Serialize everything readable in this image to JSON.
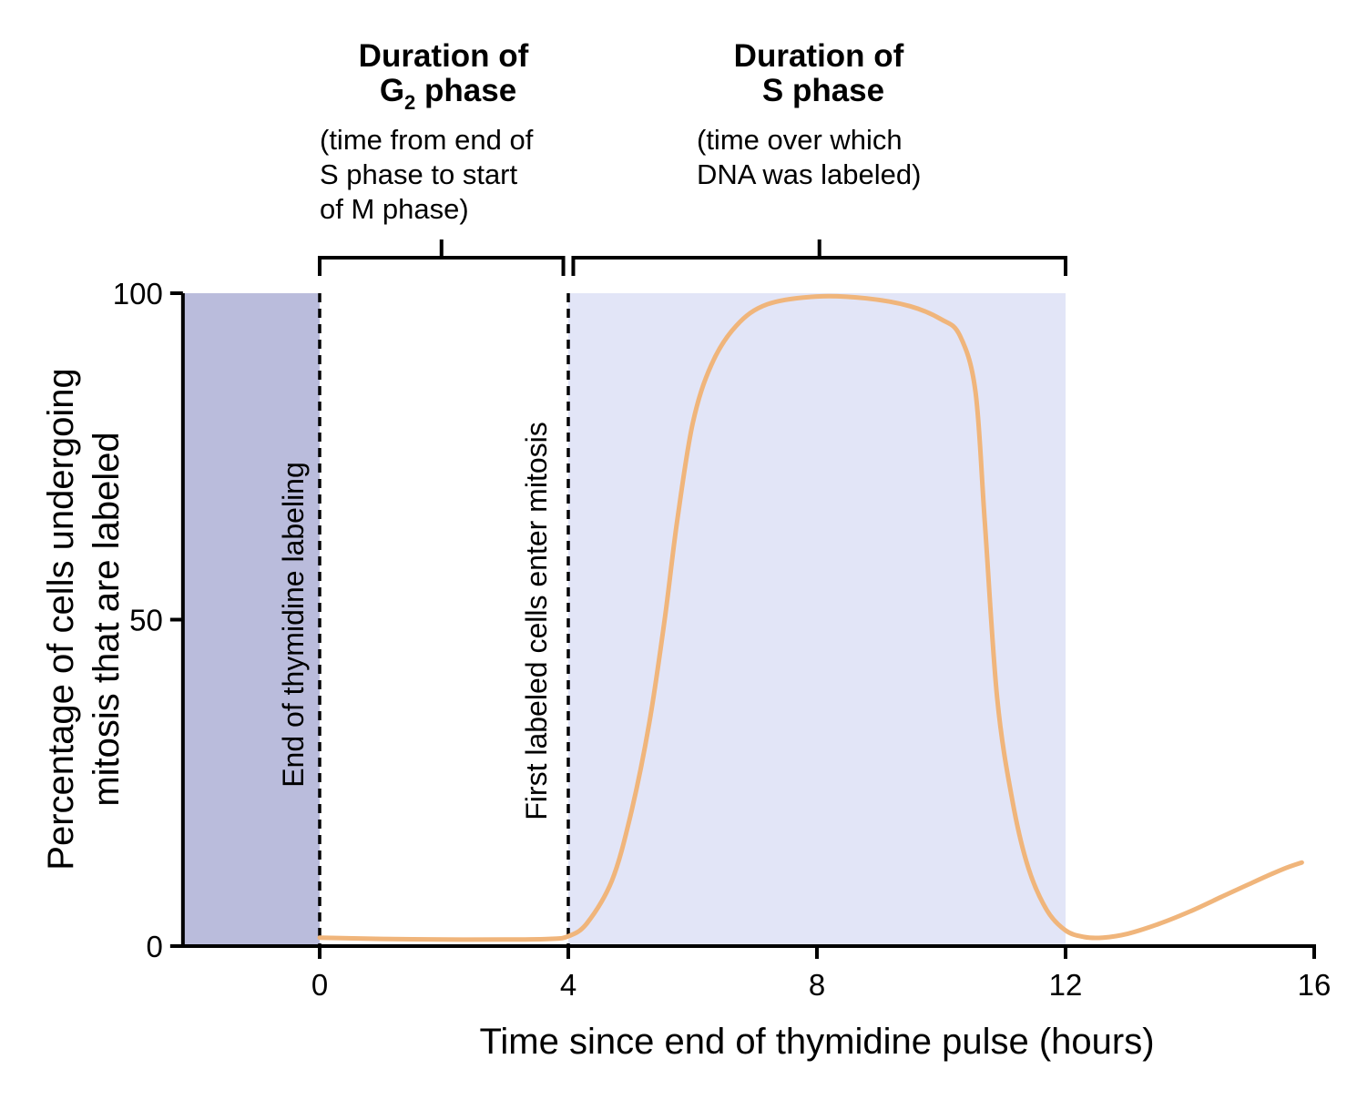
{
  "chart_data": {
    "type": "line",
    "title": "",
    "xlabel": "Time since end of thymidine pulse (hours)",
    "ylabel_lines": [
      "Percentage of cells undergoing",
      "mitosis that are labeled"
    ],
    "xlim": [
      -2.2,
      16
    ],
    "ylim": [
      0,
      100
    ],
    "xticks": [
      {
        "value": 0,
        "label": "0"
      },
      {
        "value": 4,
        "label": "4"
      },
      {
        "value": 8,
        "label": "8"
      },
      {
        "value": 12,
        "label": "12"
      },
      {
        "value": 16,
        "label": "16"
      }
    ],
    "yticks": [
      {
        "value": 0,
        "label": "0"
      },
      {
        "value": 50,
        "label": "50"
      },
      {
        "value": 100,
        "label": "100"
      }
    ],
    "shaded_regions": [
      {
        "name": "thymidine-labeling-region",
        "x_start": -2.2,
        "x_end": 0,
        "color": "#babcdc"
      },
      {
        "name": "s-phase-region",
        "x_start": 4,
        "x_end": 12,
        "color": "#e2e5f7"
      }
    ],
    "vertical_lines": [
      {
        "x": 0,
        "label": "End of thymidine labeling"
      },
      {
        "x": 4,
        "label": "First labeled cells enter mitosis"
      }
    ],
    "series": [
      {
        "color": "#f0b57b",
        "x": [
          0,
          1,
          2,
          3,
          3.7,
          4,
          4.3,
          4.7,
          5,
          5.3,
          5.55,
          5.75,
          6.0,
          6.3,
          6.7,
          7.2,
          8.0,
          8.8,
          9.5,
          10.0,
          10.3,
          10.55,
          10.7,
          10.9,
          11.15,
          11.4,
          11.7,
          12.0,
          12.3,
          12.6,
          13.0,
          13.5,
          14,
          14.5,
          15,
          15.5,
          15.8
        ],
        "y": [
          1.3,
          1.1,
          1.0,
          1.0,
          1.1,
          1.5,
          3.5,
          10,
          20,
          34,
          50,
          65,
          80,
          89,
          95,
          98.3,
          99.5,
          99.2,
          98.0,
          96.0,
          93.5,
          85,
          65,
          38,
          22,
          12,
          5.5,
          2.4,
          1.4,
          1.3,
          1.9,
          3.4,
          5.3,
          7.5,
          9.7,
          11.8,
          12.8
        ]
      }
    ]
  },
  "brackets": [
    {
      "name": "g2-phase-bracket",
      "x_start": 0,
      "x_end": 3.92,
      "title_line1": "Duration of",
      "title_line2_main": "G",
      "title_line2_sub": "2",
      "title_line2_rest": " phase",
      "notes": [
        "(time from end of",
        "S phase to start",
        "of M phase)"
      ]
    },
    {
      "name": "s-phase-bracket",
      "x_start": 4.08,
      "x_end": 12,
      "title_line1": "Duration of",
      "title_line2": "S phase",
      "notes": [
        "(time over which",
        "DNA was labeled)"
      ]
    }
  ],
  "colors": {
    "axis": "#000000",
    "curve": "#f0b57b",
    "labeling_shade": "#babcdc",
    "s_phase_shade": "#e2e5f7"
  }
}
